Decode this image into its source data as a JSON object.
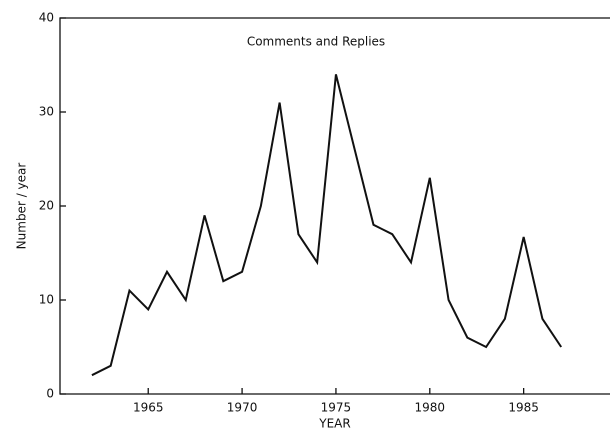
{
  "chart_data": {
    "type": "line",
    "title": "Comments and Replies",
    "x_label": "YEAR",
    "y_label": "Number / year",
    "x": [
      1962,
      1963,
      1964,
      1965,
      1966,
      1967,
      1968,
      1969,
      1970,
      1971,
      1972,
      1973,
      1974,
      1975,
      1976,
      1977,
      1978,
      1979,
      1980,
      1981,
      1982,
      1983,
      1984,
      1985,
      1986,
      1987
    ],
    "series": [
      {
        "name": null,
        "color": "#111111",
        "values": [
          2,
          3,
          11,
          9,
          13,
          10,
          19,
          12,
          13,
          20,
          31,
          17,
          14,
          34,
          26,
          18,
          17,
          14,
          23,
          10,
          6,
          5,
          8,
          16.7,
          8,
          5
        ]
      }
    ],
    "xlim": [
      1960.3,
      1989.6
    ],
    "xticks": [
      1965,
      1970,
      1975,
      1980,
      1985
    ],
    "ylim": [
      0,
      40
    ],
    "yticks": [
      0,
      10,
      20,
      30,
      40
    ],
    "grid": false
  }
}
